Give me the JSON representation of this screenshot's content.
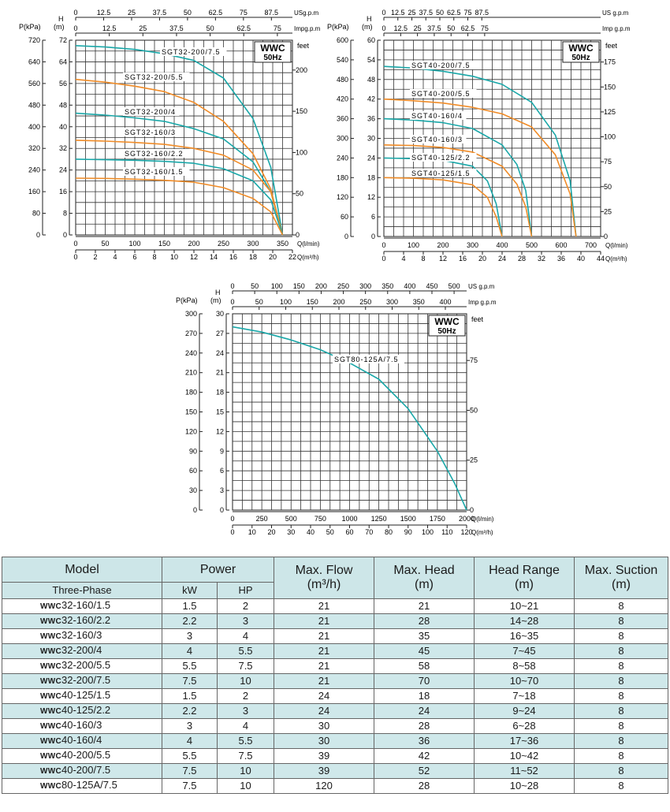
{
  "chart_data": [
    {
      "type": "line",
      "badge": {
        "model": "WWC",
        "freq": "50Hz"
      },
      "axes": {
        "pressure": {
          "label": "P(kPa)",
          "range": [
            0,
            720
          ],
          "ticks": [
            "0",
            "80",
            "160",
            "240",
            "320",
            "400",
            "480",
            "560",
            "640",
            "720"
          ]
        },
        "head": {
          "label": "H",
          "unit": "(m)",
          "range": [
            0,
            72
          ],
          "ticks": [
            "0",
            "8",
            "16",
            "24",
            "32",
            "40",
            "48",
            "56",
            "64",
            "72"
          ]
        },
        "feet": {
          "label": "feet",
          "range": [
            0,
            236.2
          ],
          "ticks": [
            "0",
            "50",
            "100",
            "150",
            "200"
          ]
        },
        "flow_lmin": {
          "label": "Q(l/min)",
          "range": [
            0,
            366.7
          ],
          "ticks": [
            "0",
            "50",
            "100",
            "150",
            "200",
            "250",
            "300",
            "350"
          ]
        },
        "flow_m3h": {
          "label": "Q(m³/h)",
          "range": [
            0,
            22
          ],
          "ticks": [
            "0",
            "2",
            "4",
            "6",
            "8",
            "10",
            "12",
            "14",
            "16",
            "18",
            "20",
            "22"
          ]
        },
        "us_gpm": {
          "label": "USg.p.m",
          "range": [
            0,
            96.9
          ],
          "ticks": [
            "0",
            "12.5",
            "25",
            "37.5",
            "50",
            "62.5",
            "75",
            "87.5"
          ]
        },
        "imp_gpm": {
          "label": "Impg.p.m",
          "range": [
            0,
            80.6
          ],
          "ticks": [
            "0",
            "12.5",
            "25",
            "37.5",
            "50",
            "62.5",
            "75"
          ]
        }
      },
      "series": [
        {
          "name": "SGT32-200/7.5",
          "color": "#1aa7a8",
          "x": [
            0,
            50,
            100,
            150,
            200,
            250,
            300,
            330,
            350
          ],
          "y": [
            70,
            69.5,
            68.6,
            67,
            64.5,
            58,
            43,
            25,
            0
          ]
        },
        {
          "name": "SGT32-200/5.5",
          "color": "#f08c28",
          "x": [
            0,
            50,
            100,
            150,
            200,
            250,
            300,
            330,
            350
          ],
          "y": [
            57.5,
            56.5,
            55,
            53,
            49,
            42,
            30,
            17,
            0
          ]
        },
        {
          "name": "SGT32-200/4",
          "color": "#1aa7a8",
          "x": [
            0,
            50,
            100,
            150,
            200,
            250,
            300,
            330,
            350
          ],
          "y": [
            45,
            44.3,
            43.3,
            42,
            39.3,
            35.5,
            27,
            16,
            0
          ]
        },
        {
          "name": "SGT32-160/3",
          "color": "#f08c28",
          "x": [
            0,
            50,
            100,
            150,
            200,
            250,
            300,
            330,
            350
          ],
          "y": [
            35,
            34.7,
            34.2,
            33.5,
            32,
            29.5,
            24,
            16,
            0
          ]
        },
        {
          "name": "SGT32-160/2.2",
          "color": "#1aa7a8",
          "x": [
            0,
            50,
            100,
            150,
            200,
            250,
            300,
            330,
            350
          ],
          "y": [
            28,
            27.8,
            27.6,
            27.2,
            26.5,
            24.5,
            20,
            13,
            0
          ]
        },
        {
          "name": "SGT32-160/1.5",
          "color": "#f08c28",
          "x": [
            0,
            50,
            100,
            150,
            200,
            250,
            300,
            330,
            350
          ],
          "y": [
            21,
            20.9,
            20.6,
            20.2,
            19.5,
            17.5,
            13.5,
            8.5,
            0
          ]
        }
      ]
    },
    {
      "type": "line",
      "badge": {
        "model": "WWC",
        "freq": "50Hz"
      },
      "axes": {
        "pressure": {
          "label": "P(kPa)",
          "range": [
            0,
            600
          ],
          "ticks": [
            "0",
            "60",
            "120",
            "180",
            "240",
            "300",
            "360",
            "420",
            "480",
            "540",
            "600"
          ]
        },
        "head": {
          "label": "H",
          "unit": "(m)",
          "range": [
            0,
            60
          ],
          "ticks": [
            "0",
            "6",
            "12",
            "18",
            "24",
            "30",
            "36",
            "42",
            "48",
            "54",
            "60"
          ]
        },
        "feet": {
          "label": "feet",
          "range": [
            0,
            196.9
          ],
          "ticks": [
            "0",
            "25",
            "50",
            "75",
            "100",
            "125",
            "150",
            "175"
          ]
        },
        "flow_lmin": {
          "label": "Q(l/min)",
          "range": [
            0,
            733.3
          ],
          "ticks": [
            "0",
            "100",
            "200",
            "300",
            "400",
            "500",
            "600",
            "700"
          ]
        },
        "flow_m3h": {
          "label": "Q(m³/h)",
          "range": [
            0,
            44
          ],
          "ticks": [
            "0",
            "4",
            "8",
            "12",
            "16",
            "20",
            "24",
            "28",
            "32",
            "36",
            "40",
            "44"
          ]
        },
        "us_gpm": {
          "label": "US g.p.m",
          "range": [
            0,
            193.7
          ],
          "ticks": [
            "0",
            "12.5",
            "25",
            "37.5",
            "50",
            "62.5",
            "75",
            "87.5"
          ]
        },
        "imp_gpm": {
          "label": "Imp g.p.m",
          "range": [
            0,
            161.3
          ],
          "ticks": [
            "0",
            "12.5",
            "25",
            "37.5",
            "50",
            "62.5",
            "75"
          ]
        }
      },
      "series": [
        {
          "name": "SGT40-200/7.5",
          "color": "#1aa7a8",
          "x": [
            0,
            100,
            200,
            300,
            400,
            500,
            580,
            630,
            650
          ],
          "y": [
            52,
            51.5,
            50.5,
            49,
            46.5,
            41,
            31,
            17,
            0
          ]
        },
        {
          "name": "SGT40-200/5.5",
          "color": "#f08c28",
          "x": [
            0,
            100,
            200,
            300,
            400,
            500,
            580,
            630,
            650
          ],
          "y": [
            42,
            41.5,
            40.8,
            39.5,
            37.5,
            33.5,
            25,
            13,
            0
          ]
        },
        {
          "name": "SGT40-160/4",
          "color": "#1aa7a8",
          "x": [
            0,
            100,
            200,
            300,
            400,
            450,
            480,
            500
          ],
          "y": [
            36,
            35.6,
            34.8,
            33,
            28,
            22,
            14,
            0
          ]
        },
        {
          "name": "SGT40-160/3",
          "color": "#f08c28",
          "x": [
            0,
            100,
            200,
            300,
            400,
            450,
            480,
            500
          ],
          "y": [
            28,
            27.8,
            27.2,
            25.8,
            21.5,
            16,
            9,
            0
          ]
        },
        {
          "name": "SGT40-125/2.2",
          "color": "#1aa7a8",
          "x": [
            0,
            100,
            200,
            300,
            350,
            380,
            400
          ],
          "y": [
            24,
            23.8,
            23.3,
            21.5,
            17,
            10,
            0
          ]
        },
        {
          "name": "SGT40-125/1.5",
          "color": "#f08c28",
          "x": [
            0,
            100,
            200,
            300,
            350,
            380,
            400
          ],
          "y": [
            18,
            17.8,
            17.3,
            15.8,
            12,
            6,
            0
          ]
        }
      ]
    },
    {
      "type": "line",
      "badge": {
        "model": "WWC",
        "freq": "50Hz"
      },
      "axes": {
        "pressure": {
          "label": "P(kPa)",
          "range": [
            0,
            300
          ],
          "ticks": [
            "0",
            "30",
            "60",
            "90",
            "120",
            "150",
            "180",
            "210",
            "240",
            "270",
            "300"
          ]
        },
        "head": {
          "label": "H",
          "unit": "(m)",
          "range": [
            0,
            30
          ],
          "ticks": [
            "0",
            "3",
            "6",
            "9",
            "12",
            "15",
            "18",
            "21",
            "24",
            "27",
            "30"
          ]
        },
        "feet": {
          "label": "feet",
          "range": [
            0,
            98.4
          ],
          "ticks": [
            "0",
            "25",
            "50",
            "75"
          ]
        },
        "flow_lmin": {
          "label": "Q(l/min)",
          "range": [
            0,
            2000
          ],
          "ticks": [
            "0",
            "250",
            "500",
            "750",
            "1000",
            "1250",
            "1500",
            "1750",
            "2000"
          ]
        },
        "flow_m3h": {
          "label": "Q(m³/h)",
          "range": [
            0,
            120
          ],
          "ticks": [
            "0",
            "10",
            "20",
            "30",
            "40",
            "50",
            "60",
            "70",
            "80",
            "90",
            "100",
            "110",
            "120"
          ]
        },
        "us_gpm": {
          "label": "US g.p.m",
          "range": [
            0,
            528.3
          ],
          "ticks": [
            "0",
            "50",
            "100",
            "150",
            "200",
            "250",
            "300",
            "350",
            "400",
            "450",
            "500"
          ]
        },
        "imp_gpm": {
          "label": "Imp g.p.m",
          "range": [
            0,
            440
          ],
          "ticks": [
            "0",
            "50",
            "100",
            "150",
            "200",
            "250",
            "300",
            "350",
            "400"
          ]
        }
      },
      "series": [
        {
          "name": "SGT80-125A/7.5",
          "color": "#1aa7a8",
          "x": [
            0,
            250,
            500,
            750,
            1000,
            1250,
            1500,
            1750,
            1900,
            2000
          ],
          "y": [
            28,
            27.2,
            26,
            24.5,
            22.5,
            20,
            15.5,
            9,
            4,
            0
          ]
        }
      ]
    }
  ],
  "table": {
    "headers": {
      "model": "Model",
      "phase": "Three-Phase",
      "power": "Power",
      "kw": "kW",
      "hp": "HP",
      "max_flow": "Max. Flow",
      "max_flow_unit": "(m³/h)",
      "max_head": "Max. Head",
      "max_head_unit": "(m)",
      "head_range": "Head Range",
      "head_range_unit": "(m)",
      "max_suction": "Max. Suction",
      "max_suction_unit": "(m)"
    },
    "rows": [
      {
        "brand": "WWC",
        "model": "32-160/1.5",
        "kw": "1.5",
        "hp": "2",
        "flow": "21",
        "head": "21",
        "range": "10~21",
        "suction": "8"
      },
      {
        "brand": "WWC",
        "model": "32-160/2.2",
        "kw": "2.2",
        "hp": "3",
        "flow": "21",
        "head": "28",
        "range": "14~28",
        "suction": "8"
      },
      {
        "brand": "WWC",
        "model": "32-160/3",
        "kw": "3",
        "hp": "4",
        "flow": "21",
        "head": "35",
        "range": "16~35",
        "suction": "8"
      },
      {
        "brand": "WWC",
        "model": "32-200/4",
        "kw": "4",
        "hp": "5.5",
        "flow": "21",
        "head": "45",
        "range": "7~45",
        "suction": "8"
      },
      {
        "brand": "WWC",
        "model": "32-200/5.5",
        "kw": "5.5",
        "hp": "7.5",
        "flow": "21",
        "head": "58",
        "range": "8~58",
        "suction": "8"
      },
      {
        "brand": "WWC",
        "model": "32-200/7.5",
        "kw": "7.5",
        "hp": "10",
        "flow": "21",
        "head": "70",
        "range": "10~70",
        "suction": "8"
      },
      {
        "brand": "WWC",
        "model": "40-125/1.5",
        "kw": "1.5",
        "hp": "2",
        "flow": "24",
        "head": "18",
        "range": "7~18",
        "suction": "8"
      },
      {
        "brand": "WWC",
        "model": "40-125/2.2",
        "kw": "2.2",
        "hp": "3",
        "flow": "24",
        "head": "24",
        "range": "9~24",
        "suction": "8"
      },
      {
        "brand": "WWC",
        "model": "40-160/3",
        "kw": "3",
        "hp": "4",
        "flow": "30",
        "head": "28",
        "range": "6~28",
        "suction": "8"
      },
      {
        "brand": "WWC",
        "model": "40-160/4",
        "kw": "4",
        "hp": "5.5",
        "flow": "30",
        "head": "36",
        "range": "17~36",
        "suction": "8"
      },
      {
        "brand": "WWC",
        "model": "40-200/5.5",
        "kw": "5.5",
        "hp": "7.5",
        "flow": "39",
        "head": "42",
        "range": "10~42",
        "suction": "8"
      },
      {
        "brand": "WWC",
        "model": "40-200/7.5",
        "kw": "7.5",
        "hp": "10",
        "flow": "39",
        "head": "52",
        "range": "11~52",
        "suction": "8"
      },
      {
        "brand": "WWC",
        "model": "80-125A/7.5",
        "kw": "7.5",
        "hp": "10",
        "flow": "120",
        "head": "28",
        "range": "10~28",
        "suction": "8"
      }
    ]
  }
}
